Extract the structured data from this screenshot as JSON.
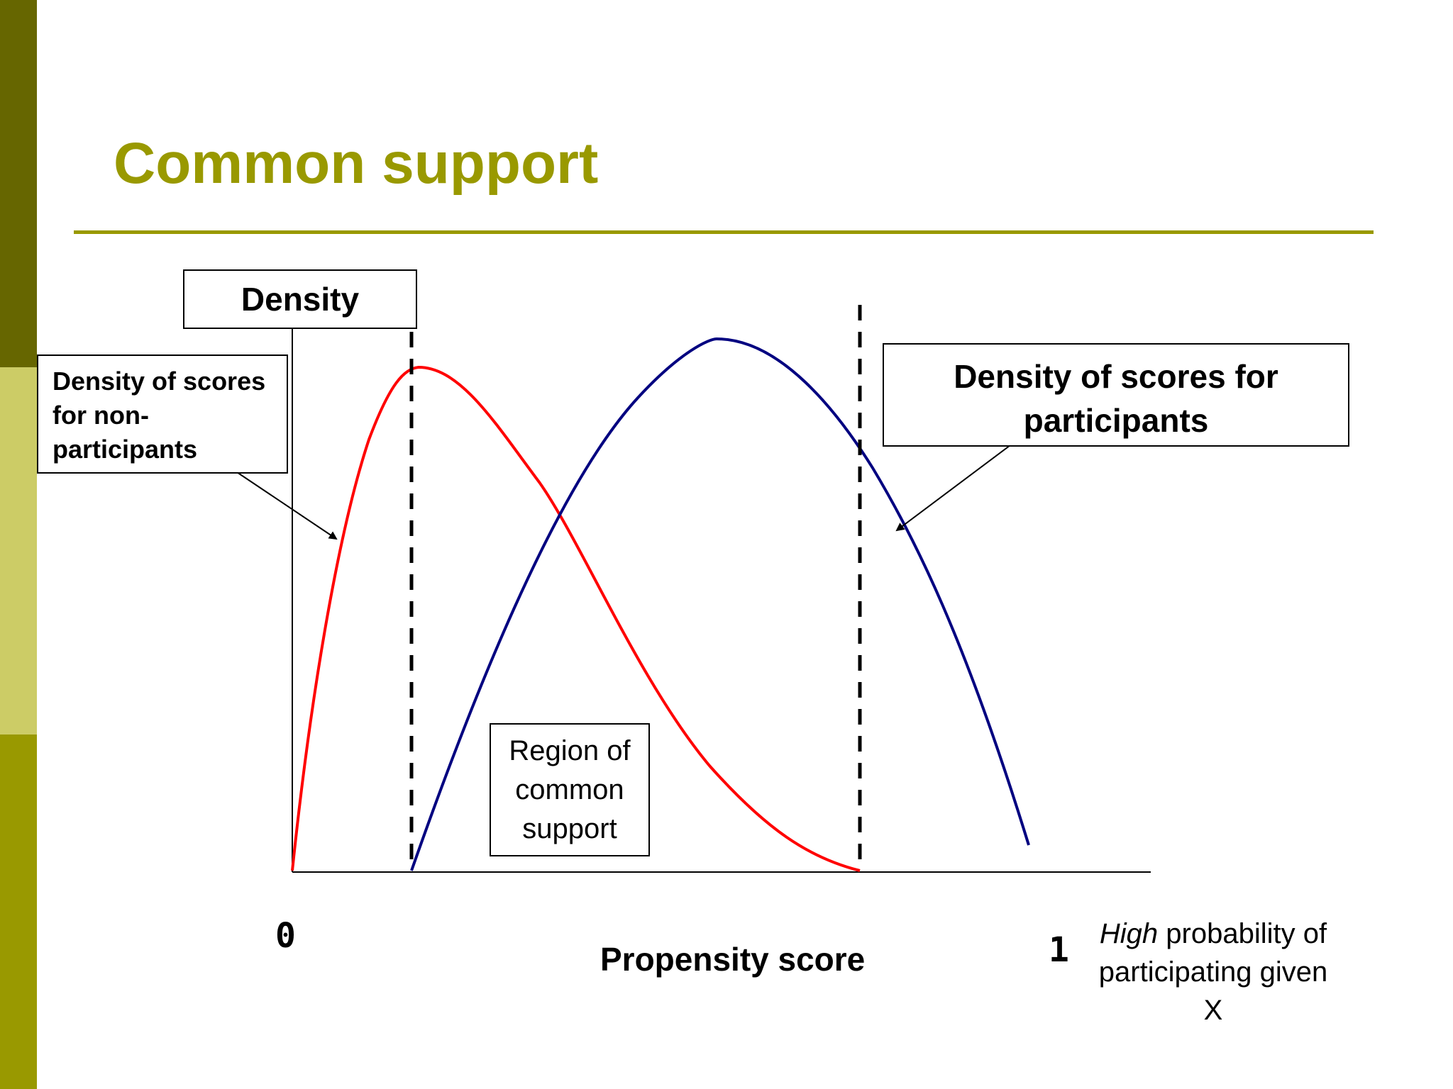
{
  "title": "Common support",
  "colors": {
    "band_top": "#666600",
    "band_middle": "#cccc66",
    "band_bottom": "#999900",
    "title": "#999900",
    "rule": "#999900",
    "non_participants_curve": "#ff0000",
    "participants_curve": "#000080",
    "support_lines": "#000000"
  },
  "labels": {
    "density": "Density",
    "non_participants": [
      "Density of scores",
      "for non-",
      "participants"
    ],
    "participants": [
      "Density of scores for",
      "participants"
    ],
    "region": [
      "Region of",
      "common",
      "support"
    ],
    "x_axis": "Propensity score",
    "x_min": "0",
    "x_max": "1",
    "high_note_emphasis": "High",
    "high_note_rest": " probability of",
    "high_note_line2": "participating given X"
  }
}
